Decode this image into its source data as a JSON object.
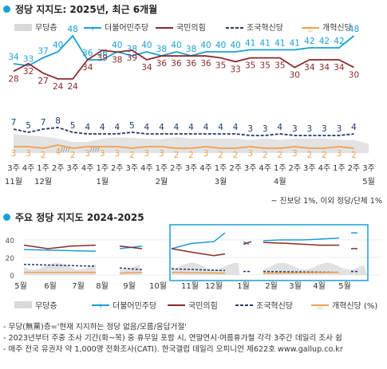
{
  "title1": "정당 지지도: 2025년, 최근 6개월",
  "title2": "주요 정당 지지도 2024-2025",
  "footnote": "~ 진보당 1%, 이외 정당/단체 1%",
  "notes": [
    "- 무당(無黨)층='현재 지지하는 정당 없음/모름/응답거절'",
    "- 2023년부터 주중 조사 기간(화~목) 중 휴무일 포함 시, 연말연시·여름휴가철 각각 3주간 데일리 조사 쉼",
    "- 매주 전국 유권자 약 1,000명 전화조사(CATI). 한국갤럽 데일리 오피니언 제622호 www.gallup.co.kr"
  ],
  "legend": [
    {
      "name": "무당층",
      "color": "#d9d9d9"
    },
    {
      "name": "더불어민주당",
      "color": "#1a9fd8"
    },
    {
      "name": "국민의힘",
      "color": "#8b2a2a"
    },
    {
      "name": "조국혁신당",
      "color": "#1f3a6e"
    },
    {
      "name": "개혁신당",
      "color": "#f0a050"
    }
  ],
  "chart_data": [
    {
      "type": "line",
      "title": "정당 지지도: 2025년, 최근 6개월",
      "x": [
        "3주",
        "4주",
        "1주",
        "2주",
        "3주",
        "4주",
        "1주",
        "2주",
        "3주",
        "4주",
        "1주",
        "2주",
        "3주",
        "4주",
        "1주",
        "2주",
        "3주",
        "4주",
        "1주",
        "2주",
        "3주",
        "4주",
        "1주",
        "2주",
        "3주"
      ],
      "month_labels": [
        {
          "at": 0,
          "label": "11월"
        },
        {
          "at": 2,
          "label": "12월"
        },
        {
          "at": 6,
          "label": "1월"
        },
        {
          "at": 10,
          "label": "2월"
        },
        {
          "at": 14,
          "label": "3월"
        },
        {
          "at": 18,
          "label": "4월"
        },
        {
          "at": 24,
          "label": "5월"
        }
      ],
      "gap_after": [
        3,
        5
      ],
      "series": [
        {
          "name": "무당층",
          "type": "area",
          "values": [
            29,
            27,
            25,
            22,
            17,
            17,
            22,
            24,
            23,
            22,
            21,
            24,
            22,
            22,
            22,
            22,
            20,
            22,
            20,
            22,
            22,
            22,
            20,
            20,
            14
          ]
        },
        {
          "name": "더불어민주당",
          "values": [
            34,
            33,
            37,
            40,
            48,
            36,
            36,
            40,
            38,
            40,
            38,
            40,
            38,
            40,
            40,
            40,
            41,
            41,
            41,
            41,
            42,
            42,
            42,
            48,
            null
          ]
        },
        {
          "name": "국민의힘",
          "values": [
            28,
            32,
            27,
            24,
            24,
            34,
            39,
            38,
            39,
            34,
            36,
            36,
            36,
            36,
            35,
            33,
            35,
            35,
            35,
            30,
            34,
            34,
            34,
            30,
            null
          ]
        },
        {
          "name": "조국혁신당",
          "values": [
            7,
            5,
            7,
            8,
            5,
            4,
            4,
            4,
            5,
            4,
            4,
            4,
            4,
            4,
            4,
            4,
            3,
            3,
            4,
            3,
            3,
            3,
            3,
            4,
            null
          ]
        },
        {
          "name": "개혁신당",
          "values": [
            3,
            3,
            2,
            4,
            2,
            3,
            3,
            3,
            2,
            3,
            3,
            2,
            2,
            3,
            2,
            2,
            3,
            2,
            2,
            3,
            2,
            2,
            3,
            2,
            null
          ]
        }
      ]
    },
    {
      "type": "line",
      "title": "주요 정당 지지도 2024-2025",
      "yticks": [
        0,
        20,
        40
      ],
      "x_labels": [
        "5월",
        "6월",
        "7월",
        "8월",
        "9월",
        "10월",
        "11월",
        "12월",
        "1월",
        "2월",
        "3월",
        "4월",
        "5월"
      ]
    }
  ]
}
